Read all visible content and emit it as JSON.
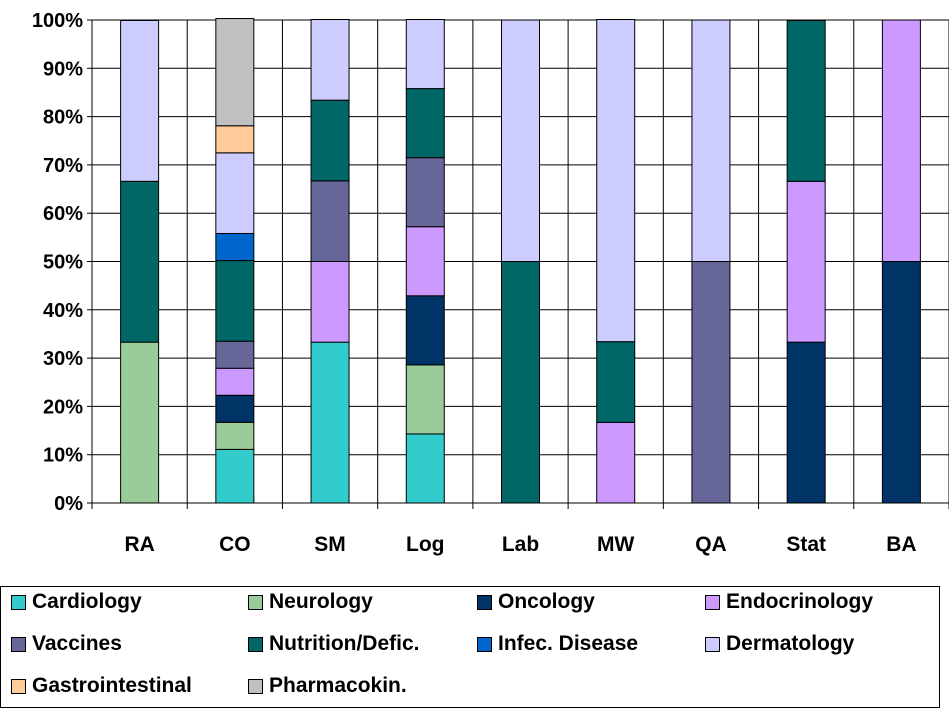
{
  "chart_data": {
    "type": "bar",
    "stacked": true,
    "percent": true,
    "categories": [
      "RA",
      "CO",
      "SM",
      "Log",
      "Lab",
      "MW",
      "QA",
      "Stat",
      "BA"
    ],
    "yticks": [
      "0%",
      "10%",
      "20%",
      "30%",
      "40%",
      "50%",
      "60%",
      "70%",
      "80%",
      "90%",
      "100%"
    ],
    "ylim": [
      0,
      100
    ],
    "grid": true,
    "legend_position": "bottom",
    "series": [
      {
        "name": "Cardiology",
        "color": "#33CCCC",
        "values": [
          0,
          11.1,
          33.3,
          14.3,
          0,
          0,
          0,
          0,
          0
        ]
      },
      {
        "name": "Neurology",
        "color": "#99CC99",
        "values": [
          33.3,
          5.6,
          0,
          14.3,
          0,
          0,
          0,
          0,
          0
        ]
      },
      {
        "name": "Oncology",
        "color": "#003366",
        "values": [
          0,
          5.6,
          0,
          14.3,
          0,
          0,
          0,
          33.3,
          50
        ]
      },
      {
        "name": "Endocrinology",
        "color": "#CC99FF",
        "values": [
          0,
          5.6,
          16.7,
          14.3,
          0,
          16.7,
          0,
          33.3,
          50
        ]
      },
      {
        "name": "Vaccines",
        "color": "#666699",
        "values": [
          0,
          5.6,
          16.7,
          14.3,
          0,
          0,
          50,
          0,
          0
        ]
      },
      {
        "name": "Nutrition/Defic.",
        "color": "#006666",
        "values": [
          33.3,
          16.7,
          16.7,
          14.3,
          50,
          16.7,
          0,
          33.3,
          0
        ]
      },
      {
        "name": "Infec. Disease",
        "color": "#0066CC",
        "values": [
          0,
          5.6,
          0,
          0,
          0,
          0,
          0,
          0,
          0
        ]
      },
      {
        "name": "Dermatology",
        "color": "#CCCCFF",
        "values": [
          33.3,
          16.7,
          16.7,
          14.3,
          50,
          66.7,
          50,
          0,
          0
        ]
      },
      {
        "name": "Gastrointestinal",
        "color": "#FFCC99",
        "values": [
          0,
          5.6,
          0,
          0,
          0,
          0,
          0,
          0,
          0
        ]
      },
      {
        "name": "Pharmacokin.",
        "color": "#C0C0C0",
        "values": [
          0,
          22.2,
          0,
          0,
          0,
          0,
          0,
          0,
          0
        ]
      }
    ]
  }
}
